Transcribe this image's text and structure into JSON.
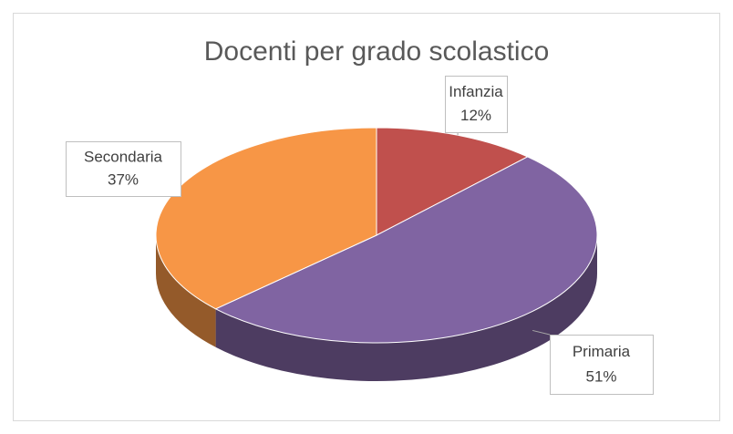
{
  "chart_data": {
    "type": "pie",
    "title": "Docenti per grado scolastico",
    "categories": [
      "Infanzia",
      "Primaria",
      "Secondaria"
    ],
    "values": [
      12,
      51,
      37
    ],
    "value_labels": [
      "12%",
      "51%",
      "37%"
    ],
    "colors": [
      "#c0504d",
      "#8064a2",
      "#f79646"
    ],
    "three_d": true
  }
}
